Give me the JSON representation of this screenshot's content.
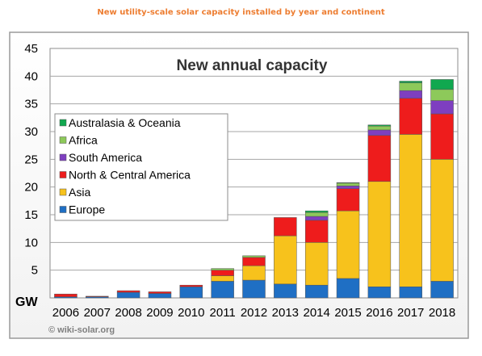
{
  "caption": "New utility-scale solar capacity installed by year and continent",
  "credit": "© wiki-solar.org",
  "chart_data": {
    "type": "bar",
    "stacked": true,
    "title": "New annual capacity",
    "ylabel": "GW",
    "xlabel": "",
    "ylim": [
      0,
      45
    ],
    "yticks": [
      5,
      10,
      15,
      20,
      25,
      30,
      35,
      40,
      45
    ],
    "grid": true,
    "legend_position": "left",
    "categories": [
      "2006",
      "2007",
      "2008",
      "2009",
      "2010",
      "2011",
      "2012",
      "2013",
      "2014",
      "2015",
      "2016",
      "2017",
      "2018"
    ],
    "series": [
      {
        "name": "Europe",
        "color": "#1F6FC4",
        "values": [
          0.2,
          0.2,
          1.0,
          0.8,
          2.0,
          3.0,
          3.2,
          2.5,
          2.3,
          3.5,
          2.0,
          2.0,
          3.0
        ]
      },
      {
        "name": "Asia",
        "color": "#F7C21C",
        "values": [
          0,
          0,
          0,
          0,
          0,
          1.0,
          2.6,
          8.7,
          7.7,
          12.2,
          19.0,
          27.5,
          22.0
        ]
      },
      {
        "name": "North & Central America",
        "color": "#EE1C1C",
        "values": [
          0.5,
          0.1,
          0.3,
          0.3,
          0.3,
          1.0,
          1.5,
          3.3,
          4.0,
          4.0,
          8.3,
          6.5,
          8.2
        ]
      },
      {
        "name": "South America",
        "color": "#7E3FC0",
        "values": [
          0,
          0,
          0,
          0,
          0,
          0,
          0,
          0,
          0.7,
          0.5,
          1.0,
          1.4,
          2.4
        ]
      },
      {
        "name": "Africa",
        "color": "#8DC95A",
        "values": [
          0,
          0,
          0,
          0,
          0,
          0.3,
          0.3,
          0,
          0.7,
          0.5,
          0.7,
          1.4,
          2.0
        ]
      },
      {
        "name": "Australasia & Oceania",
        "color": "#10A84F",
        "values": [
          0,
          0,
          0,
          0,
          0,
          0,
          0,
          0,
          0.3,
          0.1,
          0.2,
          0.3,
          1.8
        ]
      }
    ],
    "legend_order": [
      "Australasia & Oceania",
      "Africa",
      "South America",
      "North & Central America",
      "Asia",
      "Europe"
    ]
  }
}
